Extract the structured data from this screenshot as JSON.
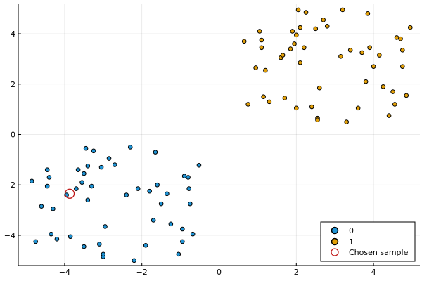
{
  "chart_data": {
    "type": "scatter",
    "title": "",
    "xlabel": "",
    "ylabel": "",
    "xlim": [
      -5.2,
      5.2
    ],
    "ylim": [
      -5.2,
      5.2
    ],
    "x_ticks": [
      -4,
      -2,
      0,
      2,
      4
    ],
    "y_ticks": [
      -4,
      -2,
      0,
      2,
      4
    ],
    "grid": true,
    "legend_position": "bottom-right",
    "series": [
      {
        "name": "0",
        "color": "#1f93d4",
        "points": [
          [
            -4.85,
            -1.85
          ],
          [
            -4.75,
            -4.25
          ],
          [
            -4.6,
            -2.85
          ],
          [
            -4.45,
            -1.4
          ],
          [
            -4.45,
            -2.05
          ],
          [
            -4.4,
            -1.7
          ],
          [
            -4.35,
            -3.95
          ],
          [
            -4.3,
            -2.95
          ],
          [
            -4.2,
            -4.15
          ],
          [
            -3.95,
            -2.4
          ],
          [
            -3.85,
            -4.05
          ],
          [
            -3.7,
            -2.15
          ],
          [
            -3.65,
            -1.4
          ],
          [
            -3.55,
            -1.9
          ],
          [
            -3.5,
            -4.45
          ],
          [
            -3.5,
            -1.55
          ],
          [
            -3.45,
            -0.55
          ],
          [
            -3.4,
            -1.25
          ],
          [
            -3.4,
            -2.6
          ],
          [
            -3.3,
            -2.05
          ],
          [
            -3.25,
            -0.65
          ],
          [
            -3.1,
            -4.35
          ],
          [
            -3.05,
            -1.3
          ],
          [
            -3.0,
            -4.85
          ],
          [
            -3.0,
            -4.75
          ],
          [
            -2.95,
            -3.65
          ],
          [
            -2.85,
            -0.95
          ],
          [
            -2.7,
            -1.2
          ],
          [
            -2.4,
            -2.4
          ],
          [
            -2.3,
            -0.5
          ],
          [
            -2.2,
            -5.0
          ],
          [
            -2.1,
            -2.15
          ],
          [
            -1.9,
            -4.4
          ],
          [
            -1.8,
            -2.25
          ],
          [
            -1.7,
            -3.4
          ],
          [
            -1.65,
            -0.7
          ],
          [
            -1.6,
            -2.0
          ],
          [
            -1.5,
            -2.75
          ],
          [
            -1.35,
            -2.35
          ],
          [
            -1.25,
            -3.55
          ],
          [
            -1.05,
            -4.75
          ],
          [
            -0.95,
            -4.25
          ],
          [
            -0.95,
            -3.75
          ],
          [
            -0.9,
            -1.65
          ],
          [
            -0.8,
            -1.7
          ],
          [
            -0.78,
            -2.15
          ],
          [
            -0.75,
            -2.75
          ],
          [
            -0.68,
            -3.95
          ],
          [
            -0.52,
            -1.22
          ]
        ]
      },
      {
        "name": "1",
        "color": "#e3a008",
        "points": [
          [
            0.65,
            3.7
          ],
          [
            0.75,
            1.2
          ],
          [
            0.95,
            2.65
          ],
          [
            1.05,
            4.1
          ],
          [
            1.1,
            3.75
          ],
          [
            1.1,
            3.45
          ],
          [
            1.15,
            1.5
          ],
          [
            1.2,
            2.55
          ],
          [
            1.3,
            1.3
          ],
          [
            1.6,
            3.05
          ],
          [
            1.65,
            3.15
          ],
          [
            1.7,
            1.45
          ],
          [
            1.85,
            3.4
          ],
          [
            1.9,
            4.1
          ],
          [
            1.95,
            3.6
          ],
          [
            2.0,
            3.95
          ],
          [
            2.0,
            1.05
          ],
          [
            2.05,
            4.95
          ],
          [
            2.1,
            4.25
          ],
          [
            2.1,
            2.85
          ],
          [
            2.2,
            3.45
          ],
          [
            2.25,
            4.85
          ],
          [
            2.4,
            1.1
          ],
          [
            2.5,
            4.2
          ],
          [
            2.55,
            0.65
          ],
          [
            2.55,
            0.58
          ],
          [
            2.6,
            1.85
          ],
          [
            2.7,
            4.55
          ],
          [
            2.8,
            4.3
          ],
          [
            3.15,
            3.1
          ],
          [
            3.2,
            4.95
          ],
          [
            3.3,
            0.5
          ],
          [
            3.4,
            3.35
          ],
          [
            3.6,
            1.05
          ],
          [
            3.7,
            3.25
          ],
          [
            3.8,
            2.1
          ],
          [
            3.85,
            4.8
          ],
          [
            3.9,
            3.45
          ],
          [
            4.0,
            2.7
          ],
          [
            4.15,
            3.15
          ],
          [
            4.25,
            1.9
          ],
          [
            4.4,
            0.75
          ],
          [
            4.5,
            1.7
          ],
          [
            4.55,
            1.2
          ],
          [
            4.6,
            3.85
          ],
          [
            4.7,
            3.8
          ],
          [
            4.75,
            3.35
          ],
          [
            4.75,
            2.7
          ],
          [
            4.85,
            1.55
          ],
          [
            4.95,
            4.25
          ]
        ]
      },
      {
        "name": "Chosen sample",
        "color": "#c01818",
        "marker": "open-circle",
        "points": [
          [
            -3.87,
            -2.35
          ]
        ]
      }
    ]
  }
}
